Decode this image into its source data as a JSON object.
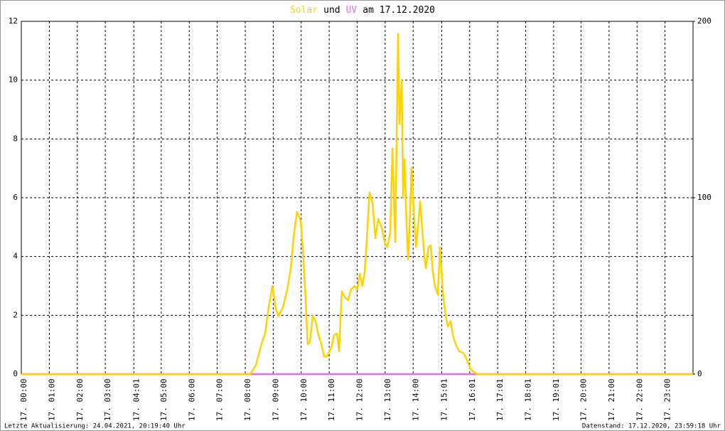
{
  "chart_data": {
    "type": "line",
    "title_connector": "und",
    "title_date": "am 17.12.2020",
    "updated": "Letzte Aktualisierung: 24.04.2021, 20:19:40 Uhr",
    "data_as_of": "Datenstand: 17.12.2020, 23:59:18 Uhr",
    "xlim": [
      0,
      24
    ],
    "xticks": [
      {
        "value": 0,
        "label": "17. 00:00"
      },
      {
        "value": 1,
        "label": "17. 01:00"
      },
      {
        "value": 2,
        "label": "17. 02:00"
      },
      {
        "value": 3,
        "label": "17. 03:00"
      },
      {
        "value": 4.02,
        "label": "17. 04:01"
      },
      {
        "value": 5,
        "label": "17. 05:00"
      },
      {
        "value": 6,
        "label": "17. 06:00"
      },
      {
        "value": 7,
        "label": "17. 07:00"
      },
      {
        "value": 8,
        "label": "17. 08:00"
      },
      {
        "value": 9,
        "label": "17. 09:00"
      },
      {
        "value": 10,
        "label": "17. 10:00"
      },
      {
        "value": 11,
        "label": "17. 11:00"
      },
      {
        "value": 12,
        "label": "17. 12:00"
      },
      {
        "value": 13,
        "label": "17. 13:00"
      },
      {
        "value": 14,
        "label": "17. 14:00"
      },
      {
        "value": 15.02,
        "label": "17. 15:01"
      },
      {
        "value": 16.02,
        "label": "17. 16:01"
      },
      {
        "value": 17.02,
        "label": "17. 17:01"
      },
      {
        "value": 18.02,
        "label": "17. 18:01"
      },
      {
        "value": 19.02,
        "label": "17. 19:01"
      },
      {
        "value": 20,
        "label": "17. 20:00"
      },
      {
        "value": 21,
        "label": "17. 21:00"
      },
      {
        "value": 22,
        "label": "17. 22:00"
      },
      {
        "value": 23,
        "label": "17. 23:00"
      }
    ],
    "ylim": [
      0,
      12
    ],
    "yticks": [
      0,
      2,
      4,
      6,
      8,
      10,
      12
    ],
    "y2lim": [
      0,
      200
    ],
    "y2ticks": [
      0,
      100,
      200
    ],
    "grid": true,
    "series": [
      {
        "name": "Solar",
        "color": "#ffd200",
        "axis": "y2",
        "x": [
          0,
          8.18,
          8.38,
          8.58,
          8.71,
          8.84,
          8.97,
          9.09,
          9.19,
          9.35,
          9.5,
          9.63,
          9.73,
          9.85,
          9.98,
          10.06,
          10.16,
          10.23,
          10.31,
          10.41,
          10.51,
          10.62,
          10.72,
          10.82,
          10.92,
          11.07,
          11.17,
          11.28,
          11.35,
          11.45,
          11.58,
          11.68,
          11.78,
          11.91,
          12.01,
          12.09,
          12.19,
          12.27,
          12.34,
          12.44,
          12.55,
          12.65,
          12.75,
          12.88,
          12.98,
          13.08,
          13.18,
          13.26,
          13.36,
          13.41,
          13.46,
          13.51,
          13.59,
          13.64,
          13.69,
          13.77,
          13.82,
          13.89,
          13.94,
          14.02,
          14.1,
          14.2,
          14.25,
          14.32,
          14.4,
          14.45,
          14.55,
          14.63,
          14.7,
          14.78,
          14.88,
          14.96,
          15.06,
          15.16,
          15.24,
          15.34,
          15.42,
          15.52,
          15.64,
          15.8,
          15.92,
          16.05,
          16.18,
          16.3,
          24
        ],
        "values": [
          0,
          0,
          5,
          17,
          23,
          38,
          50,
          37,
          33,
          38,
          48,
          60,
          78,
          92,
          87,
          70,
          42,
          17,
          18,
          33,
          30,
          22,
          17,
          10,
          10,
          15,
          22,
          23,
          13,
          47,
          43,
          42,
          48,
          50,
          48,
          57,
          50,
          58,
          75,
          103,
          97,
          77,
          88,
          83,
          75,
          72,
          80,
          128,
          75,
          133,
          193,
          142,
          167,
          100,
          122,
          83,
          65,
          92,
          117,
          92,
          72,
          88,
          98,
          83,
          67,
          60,
          72,
          73,
          58,
          50,
          45,
          72,
          47,
          33,
          27,
          30,
          22,
          17,
          13,
          12,
          8,
          3,
          1,
          0,
          0
        ]
      },
      {
        "name": "UV",
        "color": "#e070f0",
        "axis": "y",
        "x": [
          0,
          24
        ],
        "values": [
          0,
          0
        ]
      }
    ]
  }
}
